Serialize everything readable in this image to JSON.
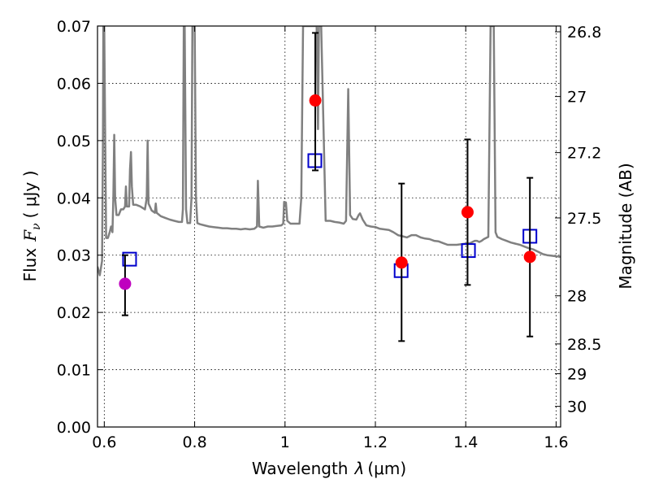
{
  "chart_data": {
    "type": "scatter",
    "xlabel": "Wavelength",
    "xlabel_symbol": "λ",
    "xlabel_unit": "(μm)",
    "ylabel": "Flux",
    "ylabel_symbol": "F",
    "ylabel_subscript": "ν",
    "ylabel_unit": "( μJy )",
    "y2label": "Magnitude (AB)",
    "xlim": [
      0.585,
      1.61
    ],
    "ylim": [
      0.0,
      0.07
    ],
    "grid": true,
    "x_ticks": [
      {
        "value": 0.6,
        "label": "0.6"
      },
      {
        "value": 0.8,
        "label": "0.8"
      },
      {
        "value": 1.0,
        "label": "1"
      },
      {
        "value": 1.2,
        "label": "1.2"
      },
      {
        "value": 1.4,
        "label": "1.4"
      },
      {
        "value": 1.6,
        "label": "1.6"
      }
    ],
    "y_ticks": [
      {
        "value": 0.0,
        "label": "0.00"
      },
      {
        "value": 0.01,
        "label": "0.01"
      },
      {
        "value": 0.02,
        "label": "0.02"
      },
      {
        "value": 0.03,
        "label": "0.03"
      },
      {
        "value": 0.04,
        "label": "0.04"
      },
      {
        "value": 0.05,
        "label": "0.05"
      },
      {
        "value": 0.06,
        "label": "0.06"
      },
      {
        "value": 0.07,
        "label": "0.07"
      }
    ],
    "mag_ticks": [
      {
        "flux": 0.069,
        "label": "26.8"
      },
      {
        "flux": 0.0577,
        "label": "27"
      },
      {
        "flux": 0.0479,
        "label": "27.2"
      },
      {
        "flux": 0.0365,
        "label": "27.5"
      },
      {
        "flux": 0.0229,
        "label": "28"
      },
      {
        "flux": 0.0145,
        "label": "28.5"
      },
      {
        "flux": 0.0093,
        "label": "29"
      },
      {
        "flux": 0.0036,
        "label": "30"
      }
    ],
    "colors": {
      "spectrum": "#808080",
      "observed": "#ff0000",
      "observed_alt": "#bf00bf",
      "model": "#0000cc",
      "errorbar": "#000000"
    },
    "spectrum": {
      "name": "",
      "points": [
        [
          0.585,
          0.028
        ],
        [
          0.59,
          0.0265
        ],
        [
          0.595,
          0.029
        ],
        [
          0.597,
          0.05
        ],
        [
          0.598,
          0.07
        ],
        [
          0.6,
          0.07
        ],
        [
          0.602,
          0.05
        ],
        [
          0.604,
          0.033
        ],
        [
          0.608,
          0.033
        ],
        [
          0.612,
          0.034
        ],
        [
          0.615,
          0.035
        ],
        [
          0.618,
          0.034
        ],
        [
          0.62,
          0.04
        ],
        [
          0.622,
          0.051
        ],
        [
          0.624,
          0.04
        ],
        [
          0.627,
          0.037
        ],
        [
          0.632,
          0.037
        ],
        [
          0.637,
          0.038
        ],
        [
          0.642,
          0.038
        ],
        [
          0.646,
          0.0385
        ],
        [
          0.648,
          0.042
        ],
        [
          0.65,
          0.0385
        ],
        [
          0.655,
          0.0385
        ],
        [
          0.657,
          0.045
        ],
        [
          0.659,
          0.048
        ],
        [
          0.661,
          0.042
        ],
        [
          0.664,
          0.0388
        ],
        [
          0.67,
          0.0388
        ],
        [
          0.68,
          0.0385
        ],
        [
          0.69,
          0.038
        ],
        [
          0.694,
          0.04
        ],
        [
          0.696,
          0.05
        ],
        [
          0.698,
          0.039
        ],
        [
          0.705,
          0.0378
        ],
        [
          0.712,
          0.0374
        ],
        [
          0.714,
          0.039
        ],
        [
          0.716,
          0.0374
        ],
        [
          0.725,
          0.0368
        ],
        [
          0.735,
          0.0365
        ],
        [
          0.745,
          0.0362
        ],
        [
          0.755,
          0.036
        ],
        [
          0.765,
          0.0358
        ],
        [
          0.772,
          0.0358
        ],
        [
          0.774,
          0.038
        ],
        [
          0.776,
          0.07
        ],
        [
          0.778,
          0.07
        ],
        [
          0.781,
          0.038
        ],
        [
          0.784,
          0.0356
        ],
        [
          0.79,
          0.0356
        ],
        [
          0.793,
          0.04
        ],
        [
          0.795,
          0.07
        ],
        [
          0.8,
          0.07
        ],
        [
          0.803,
          0.04
        ],
        [
          0.806,
          0.0356
        ],
        [
          0.812,
          0.0354
        ],
        [
          0.822,
          0.0352
        ],
        [
          0.832,
          0.035
        ],
        [
          0.842,
          0.0349
        ],
        [
          0.852,
          0.0348
        ],
        [
          0.862,
          0.0347
        ],
        [
          0.872,
          0.0347
        ],
        [
          0.882,
          0.0346
        ],
        [
          0.892,
          0.0346
        ],
        [
          0.902,
          0.0345
        ],
        [
          0.912,
          0.0346
        ],
        [
          0.922,
          0.0345
        ],
        [
          0.932,
          0.0346
        ],
        [
          0.938,
          0.035
        ],
        [
          0.94,
          0.043
        ],
        [
          0.943,
          0.035
        ],
        [
          0.952,
          0.0348
        ],
        [
          0.962,
          0.035
        ],
        [
          0.972,
          0.035
        ],
        [
          0.982,
          0.0351
        ],
        [
          0.992,
          0.0352
        ],
        [
          0.996,
          0.0355
        ],
        [
          0.998,
          0.0393
        ],
        [
          1.002,
          0.0392
        ],
        [
          1.005,
          0.036
        ],
        [
          1.012,
          0.0355
        ],
        [
          1.022,
          0.0355
        ],
        [
          1.032,
          0.0355
        ],
        [
          1.036,
          0.04
        ],
        [
          1.04,
          0.07
        ],
        [
          1.05,
          0.07
        ],
        [
          1.06,
          0.07
        ],
        [
          1.07,
          0.07
        ],
        [
          1.073,
          0.052
        ],
        [
          1.075,
          0.07
        ],
        [
          1.08,
          0.07
        ],
        [
          1.09,
          0.036
        ],
        [
          1.1,
          0.036
        ],
        [
          1.11,
          0.0358
        ],
        [
          1.12,
          0.0357
        ],
        [
          1.13,
          0.0355
        ],
        [
          1.135,
          0.036
        ],
        [
          1.14,
          0.059
        ],
        [
          1.144,
          0.037
        ],
        [
          1.15,
          0.0363
        ],
        [
          1.158,
          0.0362
        ],
        [
          1.163,
          0.037
        ],
        [
          1.166,
          0.0373
        ],
        [
          1.172,
          0.0362
        ],
        [
          1.18,
          0.0352
        ],
        [
          1.19,
          0.035
        ],
        [
          1.2,
          0.0349
        ],
        [
          1.21,
          0.0346
        ],
        [
          1.22,
          0.0345
        ],
        [
          1.23,
          0.0344
        ],
        [
          1.24,
          0.034
        ],
        [
          1.25,
          0.0335
        ],
        [
          1.26,
          0.0333
        ],
        [
          1.27,
          0.0331
        ],
        [
          1.28,
          0.0335
        ],
        [
          1.29,
          0.0335
        ],
        [
          1.3,
          0.0331
        ],
        [
          1.31,
          0.0329
        ],
        [
          1.32,
          0.0328
        ],
        [
          1.33,
          0.0325
        ],
        [
          1.34,
          0.0324
        ],
        [
          1.35,
          0.0321
        ],
        [
          1.36,
          0.0318
        ],
        [
          1.37,
          0.0318
        ],
        [
          1.38,
          0.0318
        ],
        [
          1.39,
          0.0319
        ],
        [
          1.4,
          0.032
        ],
        [
          1.41,
          0.0321
        ],
        [
          1.42,
          0.0325
        ],
        [
          1.425,
          0.0325
        ],
        [
          1.43,
          0.0323
        ],
        [
          1.435,
          0.0325
        ],
        [
          1.44,
          0.0328
        ],
        [
          1.445,
          0.033
        ],
        [
          1.45,
          0.0332
        ],
        [
          1.455,
          0.07
        ],
        [
          1.462,
          0.07
        ],
        [
          1.466,
          0.034
        ],
        [
          1.47,
          0.0332
        ],
        [
          1.48,
          0.0328
        ],
        [
          1.49,
          0.0325
        ],
        [
          1.5,
          0.0322
        ],
        [
          1.51,
          0.032
        ],
        [
          1.52,
          0.0318
        ],
        [
          1.53,
          0.0315
        ],
        [
          1.54,
          0.0312
        ],
        [
          1.55,
          0.031
        ],
        [
          1.56,
          0.0306
        ],
        [
          1.57,
          0.0302
        ],
        [
          1.58,
          0.03
        ],
        [
          1.59,
          0.0299
        ],
        [
          1.6,
          0.0298
        ],
        [
          1.61,
          0.0297
        ]
      ]
    },
    "observed_points": [
      {
        "x": 0.646,
        "y": 0.025,
        "err_low": 0.0195,
        "err_high": 0.03,
        "color": "#bf00bf"
      },
      {
        "x": 1.067,
        "y": 0.057,
        "err_low": 0.0448,
        "err_high": 0.0688,
        "color": "#ff0000"
      },
      {
        "x": 1.258,
        "y": 0.0287,
        "err_low": 0.015,
        "err_high": 0.0425,
        "color": "#ff0000"
      },
      {
        "x": 1.404,
        "y": 0.0375,
        "err_low": 0.0248,
        "err_high": 0.0502,
        "color": "#ff0000"
      },
      {
        "x": 1.542,
        "y": 0.0297,
        "err_low": 0.0158,
        "err_high": 0.0435,
        "color": "#ff0000"
      }
    ],
    "model_points": [
      {
        "x": 0.656,
        "y": 0.0293
      },
      {
        "x": 1.066,
        "y": 0.0465
      },
      {
        "x": 1.257,
        "y": 0.0273
      },
      {
        "x": 1.406,
        "y": 0.0308
      },
      {
        "x": 1.542,
        "y": 0.0333
      }
    ]
  }
}
